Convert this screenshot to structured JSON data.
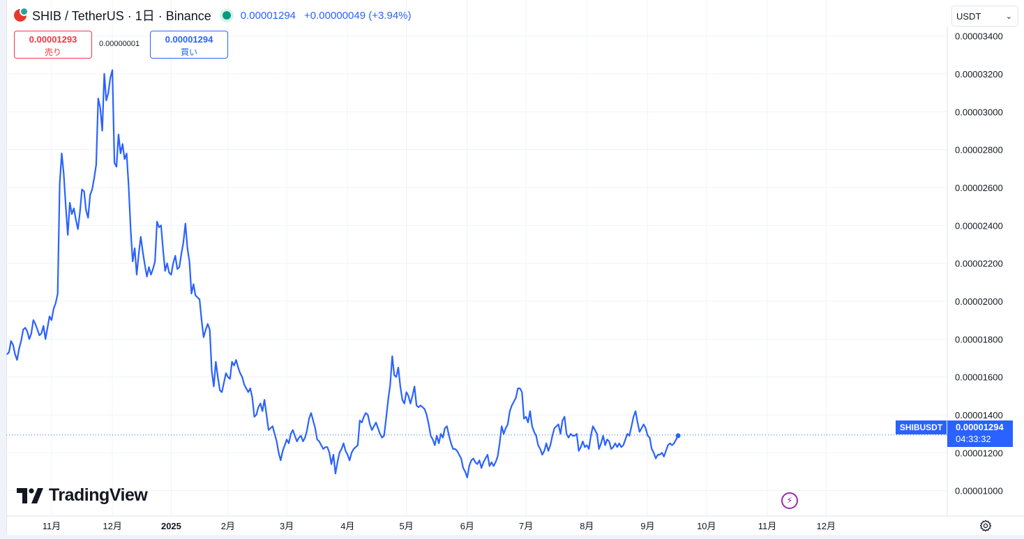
{
  "header": {
    "symbol_title": "SHIB / TetherUS · 1日 · Binance",
    "last_price": "0.00001294",
    "change": "+0.00000049 (+3.94%)"
  },
  "trade": {
    "sell_price": "0.00001293",
    "sell_label": "売り",
    "spread": "0.00000001",
    "buy_price": "0.00001294",
    "buy_label": "買い"
  },
  "currency_select": {
    "value": "USDT"
  },
  "brand": {
    "name": "TradingView"
  },
  "last_price_tag": {
    "symbol": "SHIBUSDT",
    "price": "0.00001294",
    "countdown": "04:33:32"
  },
  "icons": {
    "symbol_logo": "shib-logo-icon",
    "market_status": "market-open-dot-icon",
    "currency_dropdown": "chevron-down-icon",
    "replay": "lightning-bolt-icon",
    "settings": "gear-icon"
  },
  "colors": {
    "line": "#2962ff",
    "sell": "#f23645",
    "buy": "#2962ff",
    "grid": "#f0f3fa",
    "market_open": "#089981"
  },
  "chart_data": {
    "type": "line",
    "series": [
      {
        "name": "SHIBUSDT",
        "values": [
          1.72e-05,
          1.73e-05,
          1.79e-05,
          1.77e-05,
          1.72e-05,
          1.69e-05,
          1.75e-05,
          1.79e-05,
          1.85e-05,
          1.86e-05,
          1.84e-05,
          1.8e-05,
          1.83e-05,
          1.9e-05,
          1.88e-05,
          1.85e-05,
          1.82e-05,
          1.83e-05,
          1.87e-05,
          1.8e-05,
          1.86e-05,
          1.92e-05,
          1.9e-05,
          1.96e-05,
          1.99e-05,
          2.04e-05,
          2.62e-05,
          2.78e-05,
          2.67e-05,
          2.5e-05,
          2.35e-05,
          2.52e-05,
          2.46e-05,
          2.49e-05,
          2.43e-05,
          2.38e-05,
          2.47e-05,
          2.59e-05,
          2.58e-05,
          2.48e-05,
          2.44e-05,
          2.56e-05,
          2.59e-05,
          2.65e-05,
          2.72e-05,
          3.07e-05,
          3.02e-05,
          2.9e-05,
          3.2e-05,
          3.06e-05,
          3.1e-05,
          3.18e-05,
          3.22e-05,
          2.73e-05,
          2.71e-05,
          2.88e-05,
          2.78e-05,
          2.83e-05,
          2.75e-05,
          2.78e-05,
          2.61e-05,
          2.38e-05,
          2.21e-05,
          2.28e-05,
          2.14e-05,
          2.25e-05,
          2.34e-05,
          2.26e-05,
          2.19e-05,
          2.13e-05,
          2.18e-05,
          2.14e-05,
          2.17e-05,
          2.21e-05,
          2.42e-05,
          2.39e-05,
          2.4e-05,
          2.27e-05,
          2.16e-05,
          2.2e-05,
          2.15e-05,
          2.14e-05,
          2.2e-05,
          2.24e-05,
          2.17e-05,
          2.18e-05,
          2.25e-05,
          2.31e-05,
          2.41e-05,
          2.28e-05,
          2.21e-05,
          2.04e-05,
          2.09e-05,
          2.03e-05,
          2.02e-05,
          2.01e-05,
          1.9e-05,
          1.81e-05,
          1.85e-05,
          1.88e-05,
          1.85e-05,
          1.63e-05,
          1.55e-05,
          1.68e-05,
          1.6e-05,
          1.53e-05,
          1.52e-05,
          1.57e-05,
          1.62e-05,
          1.6e-05,
          1.59e-05,
          1.68e-05,
          1.66e-05,
          1.69e-05,
          1.65e-05,
          1.62e-05,
          1.6e-05,
          1.56e-05,
          1.54e-05,
          1.52e-05,
          1.54e-05,
          1.49e-05,
          1.39e-05,
          1.4e-05,
          1.44e-05,
          1.46e-05,
          1.42e-05,
          1.48e-05,
          1.4e-05,
          1.32e-05,
          1.33e-05,
          1.34e-05,
          1.3e-05,
          1.26e-05,
          1.2e-05,
          1.16e-05,
          1.21e-05,
          1.24e-05,
          1.27e-05,
          1.25e-05,
          1.3e-05,
          1.32e-05,
          1.29e-05,
          1.26e-05,
          1.28e-05,
          1.29e-05,
          1.26e-05,
          1.28e-05,
          1.32e-05,
          1.38e-05,
          1.41e-05,
          1.37e-05,
          1.33e-05,
          1.27e-05,
          1.26e-05,
          1.24e-05,
          1.22e-05,
          1.23e-05,
          1.23e-05,
          1.2e-05,
          1.14e-05,
          1.19e-05,
          1.09e-05,
          1.15e-05,
          1.2e-05,
          1.22e-05,
          1.25e-05,
          1.21e-05,
          1.19e-05,
          1.16e-05,
          1.2e-05,
          1.22e-05,
          1.23e-05,
          1.24e-05,
          1.37e-05,
          1.36e-05,
          1.39e-05,
          1.41e-05,
          1.4e-05,
          1.35e-05,
          1.32e-05,
          1.34e-05,
          1.36e-05,
          1.33e-05,
          1.3e-05,
          1.28e-05,
          1.29e-05,
          1.38e-05,
          1.48e-05,
          1.56e-05,
          1.71e-05,
          1.61e-05,
          1.6e-05,
          1.65e-05,
          1.55e-05,
          1.48e-05,
          1.46e-05,
          1.52e-05,
          1.5e-05,
          1.46e-05,
          1.5e-05,
          1.55e-05,
          1.45e-05,
          1.44e-05,
          1.45e-05,
          1.44e-05,
          1.43e-05,
          1.4e-05,
          1.35e-05,
          1.29e-05,
          1.27e-05,
          1.24e-05,
          1.29e-05,
          1.25e-05,
          1.3e-05,
          1.28e-05,
          1.33e-05,
          1.34e-05,
          1.29e-05,
          1.25e-05,
          1.22e-05,
          1.22e-05,
          1.21e-05,
          1.19e-05,
          1.17e-05,
          1.12e-05,
          1.1e-05,
          1.07e-05,
          1.13e-05,
          1.16e-05,
          1.17e-05,
          1.15e-05,
          1.14e-05,
          1.16e-05,
          1.12e-05,
          1.15e-05,
          1.17e-05,
          1.19e-05,
          1.13e-05,
          1.15e-05,
          1.13e-05,
          1.15e-05,
          1.18e-05,
          1.25e-05,
          1.34e-05,
          1.3e-05,
          1.33e-05,
          1.35e-05,
          1.42e-05,
          1.45e-05,
          1.47e-05,
          1.49e-05,
          1.54e-05,
          1.54e-05,
          1.52e-05,
          1.38e-05,
          1.39e-05,
          1.36e-05,
          1.42e-05,
          1.34e-05,
          1.31e-05,
          1.29e-05,
          1.24e-05,
          1.22e-05,
          1.19e-05,
          1.21e-05,
          1.25e-05,
          1.21e-05,
          1.24e-05,
          1.29e-05,
          1.33e-05,
          1.34e-05,
          1.35e-05,
          1.3e-05,
          1.37e-05,
          1.39e-05,
          1.3e-05,
          1.28e-05,
          1.3e-05,
          1.29e-05,
          1.29e-05,
          1.3e-05,
          1.21e-05,
          1.23e-05,
          1.26e-05,
          1.23e-05,
          1.24e-05,
          1.22e-05,
          1.29e-05,
          1.34e-05,
          1.32e-05,
          1.3e-05,
          1.22e-05,
          1.25e-05,
          1.29e-05,
          1.24e-05,
          1.27e-05,
          1.26e-05,
          1.22e-05,
          1.23e-05,
          1.25e-05,
          1.23e-05,
          1.25e-05,
          1.23e-05,
          1.24e-05,
          1.27e-05,
          1.3e-05,
          1.29e-05,
          1.34e-05,
          1.39e-05,
          1.42e-05,
          1.36e-05,
          1.31e-05,
          1.33e-05,
          1.35e-05,
          1.33e-05,
          1.29e-05,
          1.28e-05,
          1.22e-05,
          1.2e-05,
          1.17e-05,
          1.19e-05,
          1.19e-05,
          1.2e-05,
          1.18e-05,
          1.21e-05,
          1.24e-05,
          1.25e-05,
          1.24e-05,
          1.25e-05,
          1.27e-05,
          1.29e-05
        ]
      }
    ],
    "y_ticks": [
      "0.00001000",
      "0.00001200",
      "0.00001400",
      "0.00001600",
      "0.00001800",
      "0.00002000",
      "0.00002200",
      "0.00002400",
      "0.00002600",
      "0.00002800",
      "0.00003000",
      "0.00003200",
      "0.00003400"
    ],
    "y_tick_values": [
      1e-05,
      1.2e-05,
      1.4e-05,
      1.6e-05,
      1.8e-05,
      2e-05,
      2.2e-05,
      2.4e-05,
      2.6e-05,
      2.8e-05,
      3e-05,
      3.2e-05,
      3.4e-05
    ],
    "x_ticks": [
      "11月",
      "12月",
      "2025",
      "2月",
      "3月",
      "4月",
      "5月",
      "6月",
      "7月",
      "8月",
      "9月",
      "10月",
      "11月",
      "12月"
    ],
    "x_tick_index": [
      22,
      52,
      81,
      109,
      138,
      168,
      197,
      227,
      256,
      286,
      316,
      345,
      375,
      404
    ],
    "ylim": [
      8.7e-06,
      3.45e-05
    ],
    "x_count": 450,
    "grid": true,
    "scale_side": "right",
    "last_value": 1.294e-05
  }
}
